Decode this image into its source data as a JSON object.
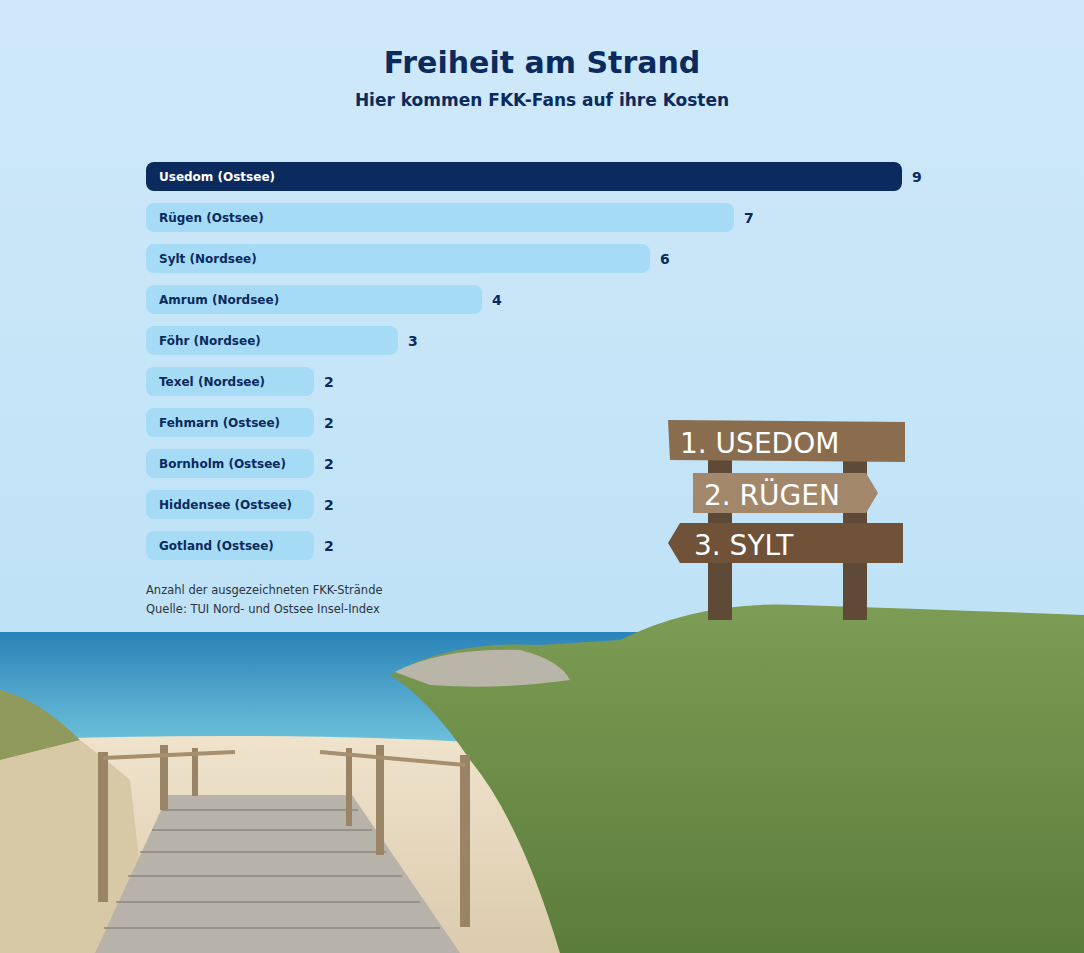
{
  "chart_data": {
    "type": "bar",
    "orientation": "horizontal",
    "title": "Freiheit am Strand",
    "subtitle": "Hier kommen FKK-Fans auf ihre Kosten",
    "categories": [
      "Usedom (Ostsee)",
      "Rügen (Ostsee)",
      "Sylt (Nordsee)",
      "Amrum (Nordsee)",
      "Föhr (Nordsee)",
      "Texel (Nordsee)",
      "Fehmarn (Ostsee)",
      "Bornholm (Ostsee)",
      "Hiddensee (Ostsee)",
      "Gotland (Ostsee)"
    ],
    "values": [
      9,
      7,
      6,
      4,
      3,
      2,
      2,
      2,
      2,
      2
    ],
    "colors": [
      "#0b2a5e",
      "#a6dbf5",
      "#a6dbf5",
      "#a6dbf5",
      "#a6dbf5",
      "#a6dbf5",
      "#a6dbf5",
      "#a6dbf5",
      "#a6dbf5",
      "#a6dbf5"
    ],
    "xlim": [
      0,
      9
    ],
    "x_label": "Anzahl der ausgezeichneten FKK-Strände",
    "source": "Quelle: TUI Nord- und Ostsee Insel-Index",
    "annotations": [
      "1. USEDOM",
      "2. RÜGEN",
      "3. SYLT"
    ],
    "data_labels": true,
    "tick_labels": false,
    "grid": false
  }
}
